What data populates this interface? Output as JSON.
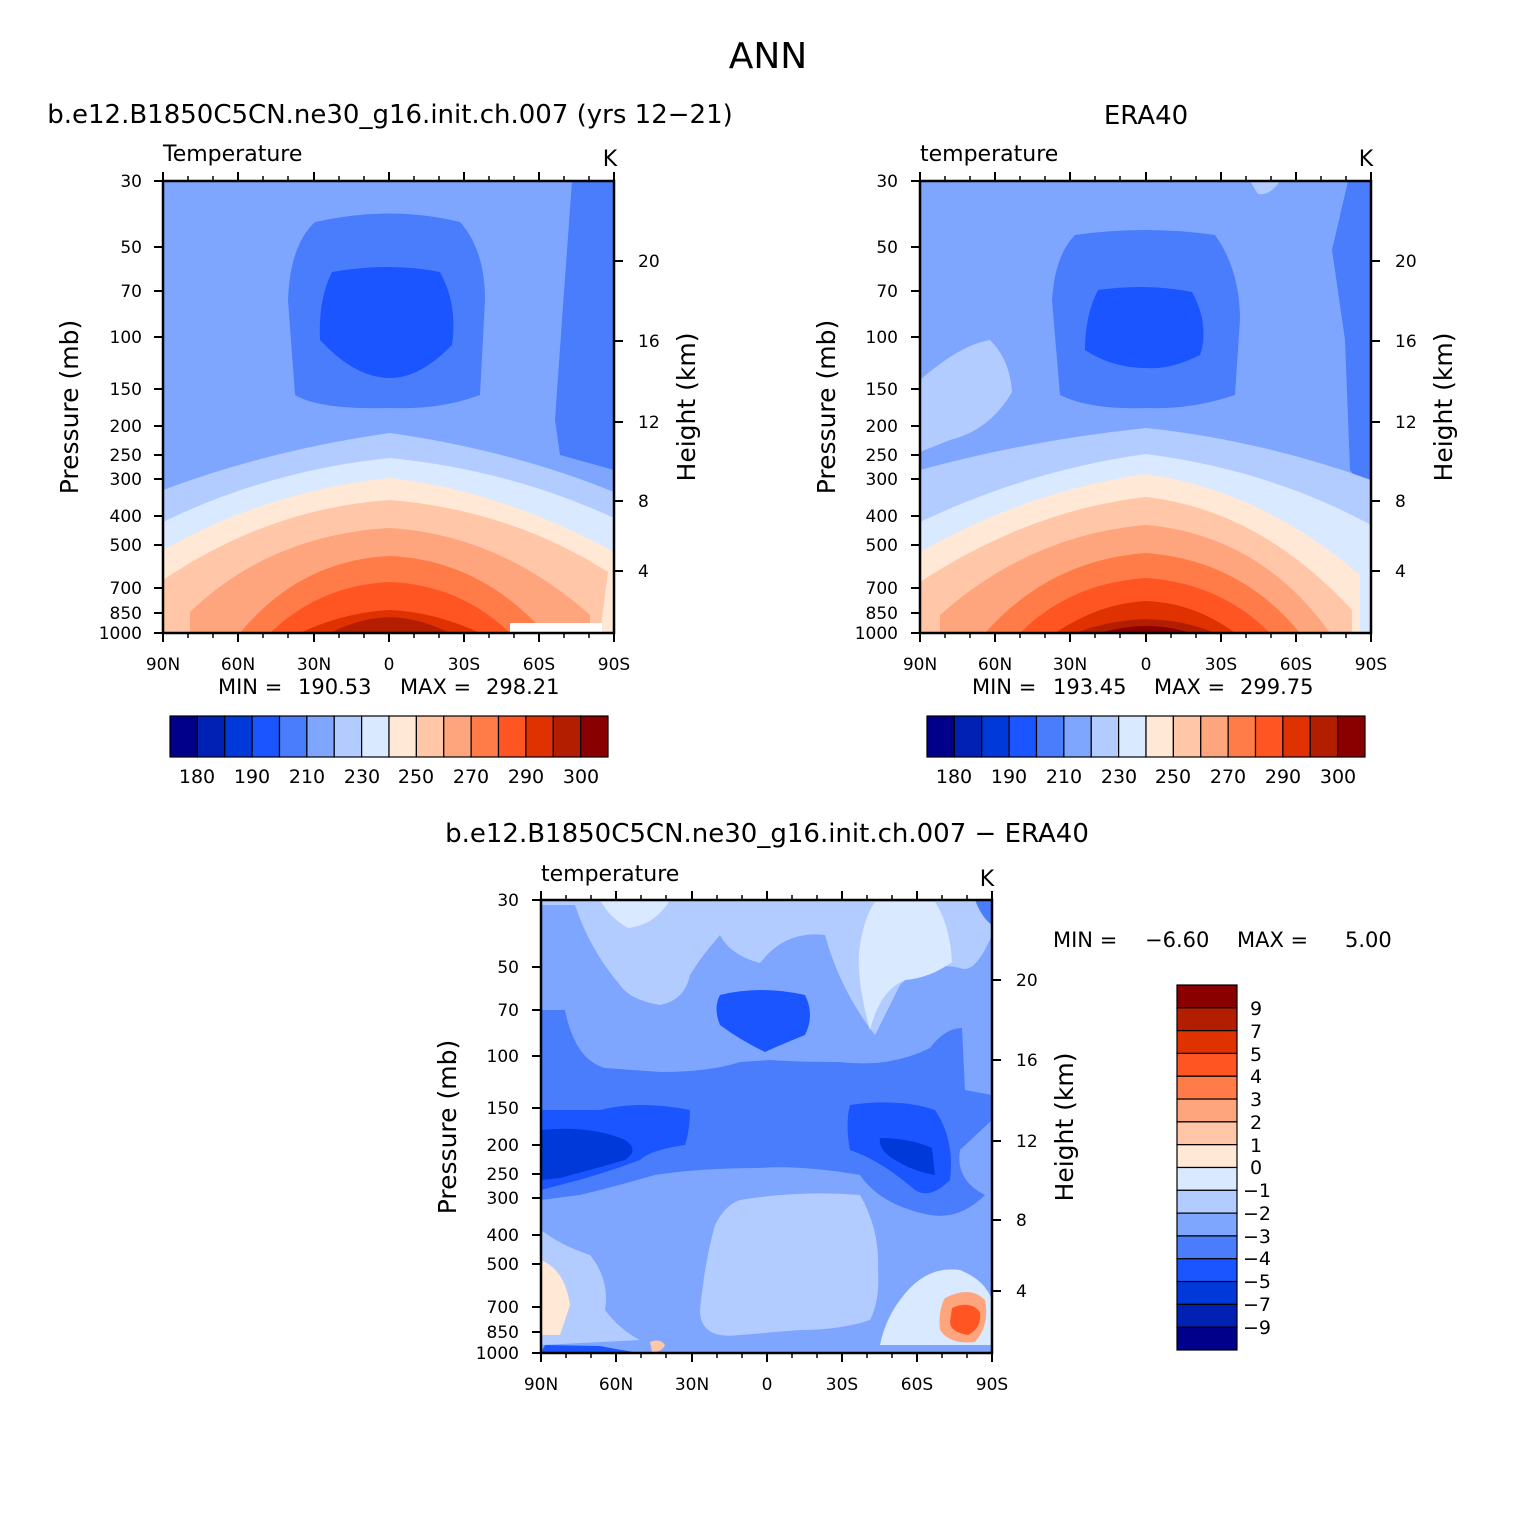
{
  "title": "ANN",
  "chart_data": [
    {
      "type": "contour",
      "panel": "model",
      "title": "b.e12.B1850C5CN.ne30_g16.init.ch.007 (yrs 12−21)",
      "variable_label": "Temperature",
      "units": "K",
      "xlabel": "",
      "ylabel": "Pressure (mb)",
      "y2label": "Height (km)",
      "x_ticks": [
        "90N",
        "60N",
        "30N",
        "0",
        "30S",
        "60S",
        "90S"
      ],
      "x_range": [
        90,
        -90
      ],
      "y_range": [
        30,
        1000
      ],
      "pressure_ticks": [
        30,
        50,
        70,
        100,
        150,
        200,
        250,
        300,
        400,
        500,
        700,
        850,
        1000
      ],
      "height_ticks_km": [
        4,
        8,
        12,
        16,
        20
      ],
      "min_label": "MIN =",
      "min_value": "190.53",
      "max_label": "MAX =",
      "max_value": "298.21",
      "colorbar_labels": [
        "180",
        "190",
        "210",
        "230",
        "250",
        "270",
        "290",
        "300"
      ]
    },
    {
      "type": "contour",
      "panel": "obs",
      "title": "ERA40",
      "variable_label": "temperature",
      "units": "K",
      "xlabel": "",
      "ylabel": "Pressure (mb)",
      "y2label": "Height (km)",
      "x_ticks": [
        "90N",
        "60N",
        "30N",
        "0",
        "30S",
        "60S",
        "90S"
      ],
      "x_range": [
        90,
        -90
      ],
      "y_range": [
        30,
        1000
      ],
      "pressure_ticks": [
        30,
        50,
        70,
        100,
        150,
        200,
        250,
        300,
        400,
        500,
        700,
        850,
        1000
      ],
      "height_ticks_km": [
        4,
        8,
        12,
        16,
        20
      ],
      "min_label": "MIN =",
      "min_value": "193.45",
      "max_label": "MAX =",
      "max_value": "299.75",
      "colorbar_labels": [
        "180",
        "190",
        "210",
        "230",
        "250",
        "270",
        "290",
        "300"
      ]
    },
    {
      "type": "contour",
      "panel": "diff",
      "title": "b.e12.B1850C5CN.ne30_g16.init.ch.007 − ERA40",
      "variable_label": "temperature",
      "units": "K",
      "xlabel": "",
      "ylabel": "Pressure (mb)",
      "y2label": "Height (km)",
      "x_ticks": [
        "90N",
        "60N",
        "30N",
        "0",
        "30S",
        "60S",
        "90S"
      ],
      "x_range": [
        90,
        -90
      ],
      "y_range": [
        30,
        1000
      ],
      "pressure_ticks": [
        30,
        50,
        70,
        100,
        150,
        200,
        250,
        300,
        400,
        500,
        700,
        850,
        1000
      ],
      "height_ticks_km": [
        4,
        8,
        12,
        16,
        20
      ],
      "min_label": "MIN =",
      "min_value": "−6.60",
      "max_label": "MAX =",
      "max_value": "5.00",
      "colorbar_labels": [
        "9",
        "7",
        "5",
        "4",
        "3",
        "2",
        "1",
        "0",
        "−1",
        "−2",
        "−3",
        "−4",
        "−5",
        "−7",
        "−9"
      ]
    }
  ],
  "colormap": [
    "#00008a",
    "#0021b4",
    "#0039d9",
    "#1a55ff",
    "#4a7dfc",
    "#7fa6ff",
    "#b3ccff",
    "#d9e9ff",
    "#ffe8d6",
    "#ffc6a8",
    "#ffa57d",
    "#ff7c48",
    "#ff5522",
    "#e03200",
    "#b41e00",
    "#8a0000"
  ]
}
